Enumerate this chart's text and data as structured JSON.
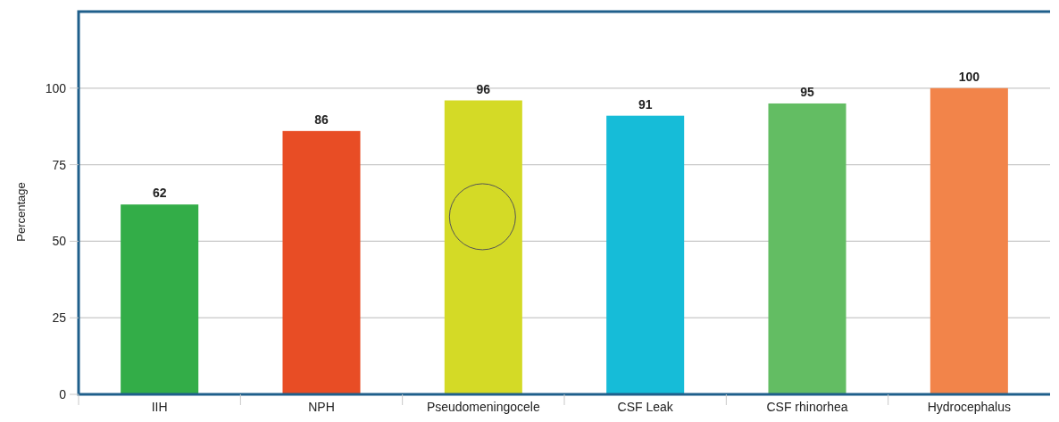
{
  "chart_data": {
    "type": "bar",
    "ylabel": "Percentage",
    "categories": [
      "IIH",
      "NPH",
      "Pseudomeningocele",
      "CSF Leak",
      "CSF rhinorhea",
      "Hydrocephalus"
    ],
    "values": [
      62,
      86,
      96,
      91,
      95,
      100
    ],
    "colors": [
      "#33ad48",
      "#e84d25",
      "#d4da26",
      "#16bcd8",
      "#63bd63",
      "#f2844a"
    ],
    "ylim": [
      0,
      125
    ],
    "yticks": [
      0,
      25,
      50,
      75,
      100
    ],
    "grid": "y",
    "data_labels": true
  }
}
